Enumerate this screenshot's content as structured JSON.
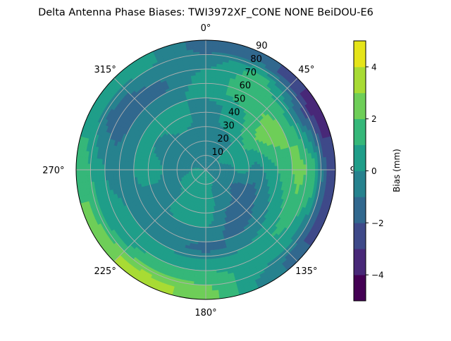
{
  "chart_data": {
    "type": "heatmap",
    "subtype": "polar filled contour",
    "title": "Delta Antenna Phase Biases: TWI3972XF_CONE  NONE BeiDOU-E6",
    "theta_zero": "north",
    "theta_direction": "clockwise",
    "theta_tick_labels": [
      "0°",
      "45°",
      "90°",
      "135°",
      "180°",
      "225°",
      "270°",
      "315°"
    ],
    "theta_ticks": [
      0,
      45,
      90,
      135,
      180,
      225,
      270,
      315
    ],
    "r_ticks": [
      10,
      20,
      30,
      40,
      50,
      60,
      70,
      80,
      90
    ],
    "r_tick_labels": [
      "10",
      "20",
      "30",
      "40",
      "50",
      "60",
      "70",
      "80",
      "90"
    ],
    "rlim": [
      0,
      90
    ],
    "grid": true,
    "colorbar": {
      "label": "Bias (mm)",
      "levels": [
        -5,
        -4,
        -3,
        -2,
        -1,
        0,
        1,
        2,
        3,
        4,
        5
      ],
      "ticks": [
        -4,
        -2,
        0,
        2,
        4
      ],
      "tick_labels": [
        "−4",
        "−2",
        "0",
        "2",
        "4"
      ],
      "colormap": "viridis",
      "colors": [
        "#440154",
        "#482878",
        "#3e4989",
        "#31688e",
        "#26828e",
        "#1f9e89",
        "#35b779",
        "#6ece58",
        "#a8db34",
        "#e5e419"
      ],
      "placement": "right"
    },
    "grid_azimuths": [
      0,
      30,
      60,
      90,
      120,
      150,
      180,
      210,
      240,
      270,
      300,
      330
    ],
    "grid_radii": [
      5,
      15,
      25,
      35,
      45,
      55,
      65,
      75,
      85
    ],
    "values": [
      [
        -0.5,
        -0.5,
        -0.5,
        -0.5,
        -0.5,
        0.5,
        0.5,
        -0.5,
        -1.5
      ],
      [
        -0.5,
        -0.5,
        -0.5,
        0.5,
        0.5,
        1.5,
        1.5,
        1.5,
        -1.5
      ],
      [
        -0.5,
        0.5,
        0.5,
        1.5,
        2.5,
        2.5,
        1.5,
        -1.5,
        -3.5
      ],
      [
        -0.5,
        -0.5,
        0.5,
        -0.5,
        0.5,
        1.5,
        2.5,
        1.5,
        -2.5
      ],
      [
        -0.5,
        -0.5,
        -1.5,
        -1.5,
        -0.5,
        0.5,
        1.5,
        0.5,
        -2.5
      ],
      [
        0.5,
        -0.5,
        -0.5,
        -1.5,
        -1.5,
        -0.5,
        0.5,
        0.5,
        -0.5
      ],
      [
        0.5,
        0.5,
        0.5,
        0.5,
        -0.5,
        -1.5,
        0.5,
        1.5,
        2.5
      ],
      [
        0.5,
        0.5,
        0.5,
        0.5,
        -0.5,
        -0.5,
        0.5,
        1.5,
        3.5
      ],
      [
        0.5,
        0.5,
        -0.5,
        -0.5,
        -0.5,
        -0.5,
        0.5,
        0.5,
        2.5
      ],
      [
        0.5,
        -0.5,
        -0.5,
        0.5,
        0.5,
        -0.5,
        -0.5,
        0.5,
        1.5
      ],
      [
        -0.5,
        -0.5,
        -0.5,
        -0.5,
        0.5,
        -0.5,
        -1.5,
        -1.5,
        0.5
      ],
      [
        -0.5,
        -0.5,
        -0.5,
        0.5,
        0.5,
        -0.5,
        -1.5,
        -0.5,
        0.5
      ]
    ]
  }
}
